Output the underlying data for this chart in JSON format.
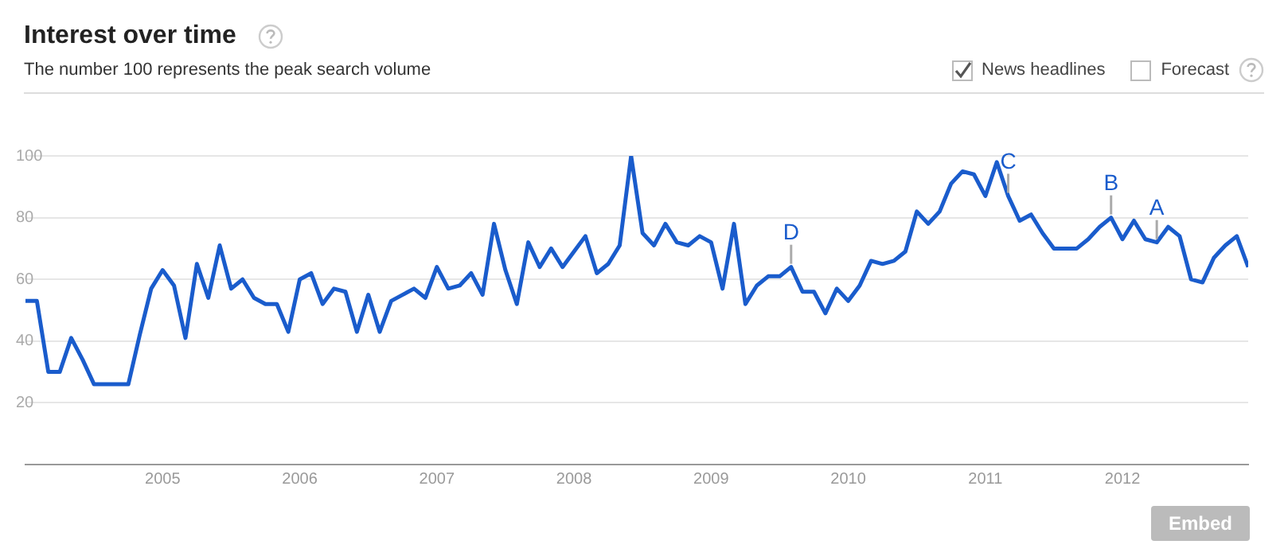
{
  "chart_data": {
    "type": "line",
    "title": "Interest over time",
    "subtitle": "The number 100 represents the peak search volume",
    "x": [
      "2004-01",
      "2004-02",
      "2004-03",
      "2004-04",
      "2004-05",
      "2004-06",
      "2004-07",
      "2004-08",
      "2004-09",
      "2004-10",
      "2004-11",
      "2004-12",
      "2005-01",
      "2005-02",
      "2005-03",
      "2005-04",
      "2005-05",
      "2005-06",
      "2005-07",
      "2005-08",
      "2005-09",
      "2005-10",
      "2005-11",
      "2005-12",
      "2006-01",
      "2006-02",
      "2006-03",
      "2006-04",
      "2006-05",
      "2006-06",
      "2006-07",
      "2006-08",
      "2006-09",
      "2006-10",
      "2006-11",
      "2006-12",
      "2007-01",
      "2007-02",
      "2007-03",
      "2007-04",
      "2007-05",
      "2007-06",
      "2007-07",
      "2007-08",
      "2007-09",
      "2007-10",
      "2007-11",
      "2007-12",
      "2008-01",
      "2008-02",
      "2008-03",
      "2008-04",
      "2008-05",
      "2008-06",
      "2008-07",
      "2008-08",
      "2008-09",
      "2008-10",
      "2008-11",
      "2008-12",
      "2009-01",
      "2009-02",
      "2009-03",
      "2009-04",
      "2009-05",
      "2009-06",
      "2009-07",
      "2009-08",
      "2009-09",
      "2009-10",
      "2009-11",
      "2009-12",
      "2010-01",
      "2010-02",
      "2010-03",
      "2010-04",
      "2010-05",
      "2010-06",
      "2010-07",
      "2010-08",
      "2010-09",
      "2010-10",
      "2010-11",
      "2010-12",
      "2011-01",
      "2011-02",
      "2011-03",
      "2011-04",
      "2011-05",
      "2011-06",
      "2011-07",
      "2011-08",
      "2011-09",
      "2011-10",
      "2011-11",
      "2011-12",
      "2012-01",
      "2012-02",
      "2012-03",
      "2012-04",
      "2012-05",
      "2012-06",
      "2012-07",
      "2012-08",
      "2012-09",
      "2012-10",
      "2012-11",
      "2012-12"
    ],
    "series": [
      {
        "color": "#1a5ccc",
        "values": [
          53,
          53,
          30,
          30,
          41,
          34,
          26,
          26,
          26,
          26,
          42,
          57,
          63,
          58,
          41,
          65,
          54,
          71,
          57,
          60,
          54,
          52,
          52,
          43,
          60,
          62,
          52,
          57,
          56,
          43,
          55,
          43,
          53,
          55,
          57,
          54,
          64,
          57,
          58,
          62,
          55,
          78,
          63,
          52,
          72,
          64,
          70,
          64,
          69,
          74,
          62,
          65,
          71,
          100,
          75,
          71,
          78,
          72,
          71,
          74,
          72,
          57,
          78,
          52,
          58,
          61,
          61,
          64,
          56,
          56,
          49,
          57,
          53,
          58,
          66,
          65,
          66,
          69,
          82,
          78,
          82,
          91,
          95,
          94,
          87,
          98,
          87,
          79,
          81,
          75,
          70,
          70,
          70,
          73,
          77,
          80,
          73,
          79,
          73,
          72,
          77,
          74,
          60,
          59,
          67,
          71,
          74,
          64
        ]
      }
    ],
    "xlim": [
      "2004-01",
      "2012-12"
    ],
    "xticks": [
      "2005",
      "2006",
      "2007",
      "2008",
      "2009",
      "2010",
      "2011",
      "2012"
    ],
    "ylim": [
      0,
      100
    ],
    "yticks": [
      20,
      40,
      60,
      80,
      100
    ],
    "grid": "y",
    "legend": false,
    "marker": "none",
    "line_style": "solid",
    "annotations": [
      "News headlines",
      "Forecast",
      "Embed",
      {
        "text": "D",
        "x": "2009-08",
        "y": 64
      },
      {
        "text": "C",
        "x": "2011-03",
        "y": 87
      },
      {
        "text": "B",
        "x": "2011-12",
        "y": 80
      },
      {
        "text": "A",
        "x": "2012-04",
        "y": 72
      }
    ]
  }
}
